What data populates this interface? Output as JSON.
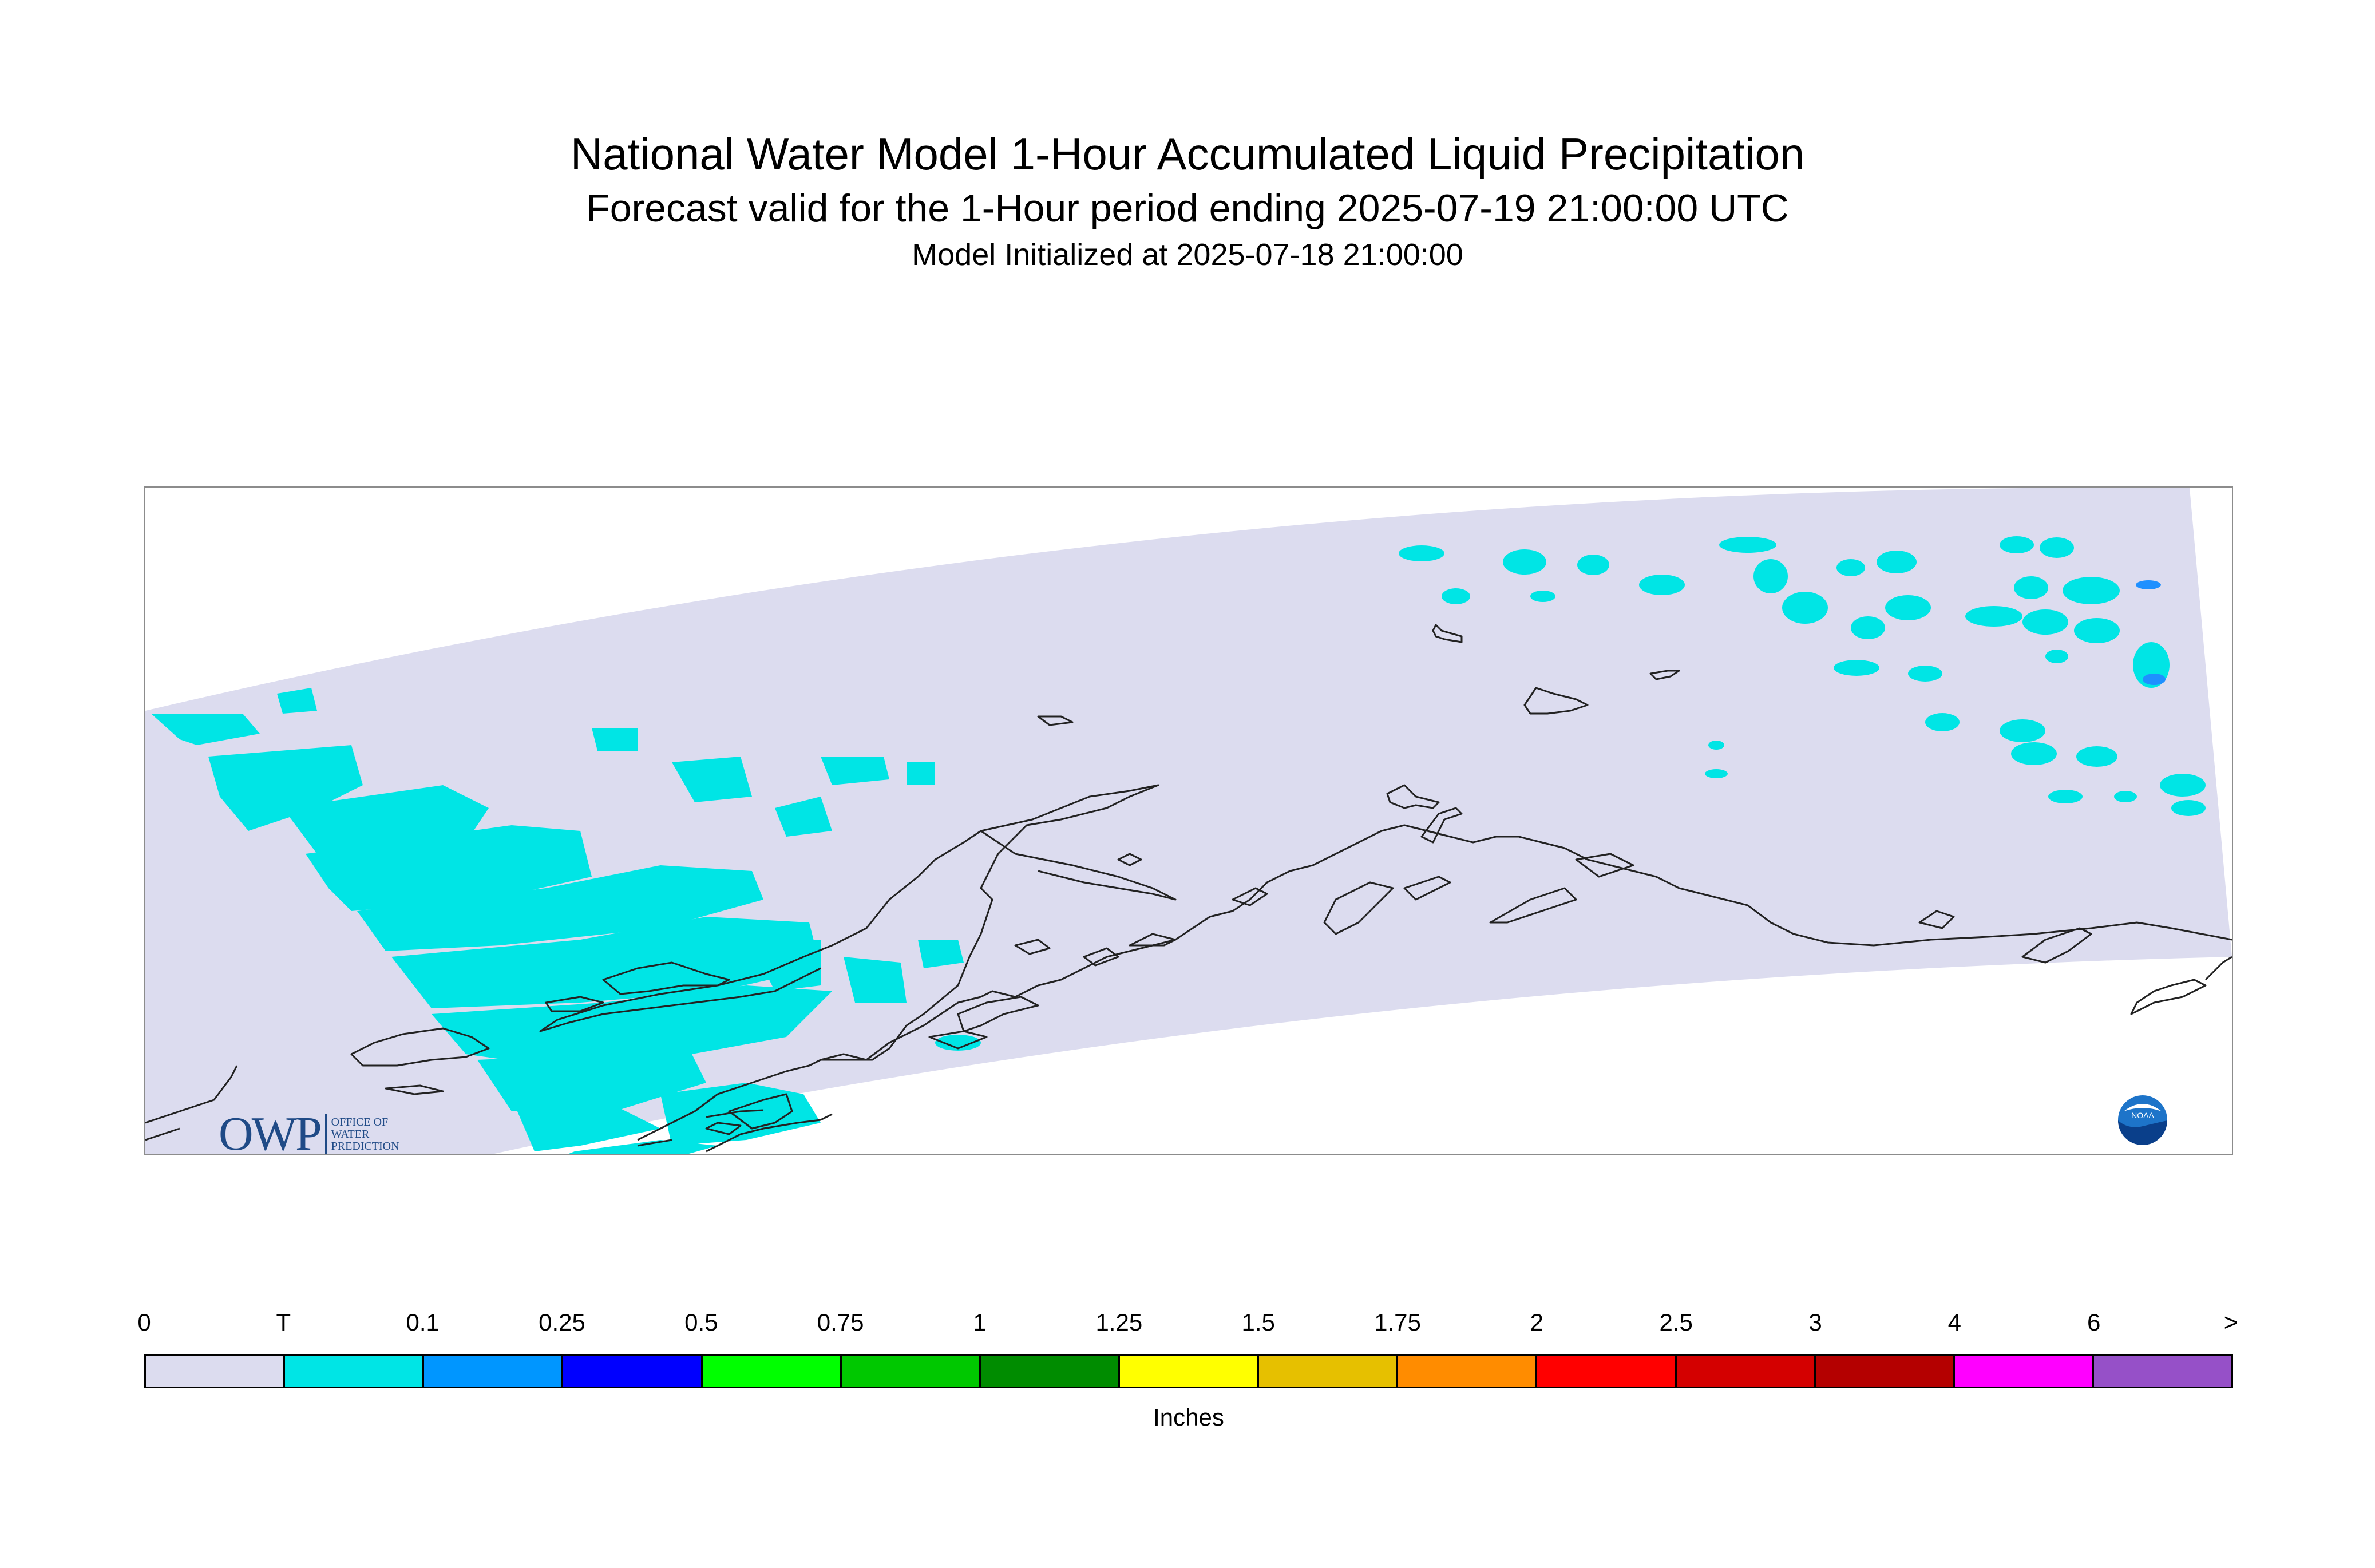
{
  "title": "National Water Model 1-Hour Accumulated Liquid Precipitation",
  "subtitle": "Forecast valid for the 1-Hour period ending 2025-07-19 21:00:00 UTC",
  "init_line": "Model Initialized at 2025-07-18 21:00:00",
  "map": {
    "region": "Alaska",
    "domain_fill_color": "#dcdcef",
    "coastline_color": "#222222",
    "precip_trace_color": "#00e5e5",
    "precip_light_color": "#1e90ff"
  },
  "logos": {
    "owp": {
      "letters": "OWP",
      "line1": "OFFICE OF",
      "line2": "WATER",
      "line3": "PREDICTION"
    },
    "noaa": {
      "text": "NOAA"
    }
  },
  "legend": {
    "units": "Inches",
    "labels": [
      "0",
      "T",
      "0.1",
      "0.25",
      "0.5",
      "0.75",
      "1",
      "1.25",
      "1.5",
      "1.75",
      "2",
      "2.5",
      "3",
      "4",
      "6",
      ">"
    ],
    "colors": [
      "#dcdcef",
      "#00e5e5",
      "#0096ff",
      "#0000ff",
      "#00ff00",
      "#00c800",
      "#008c00",
      "#ffff00",
      "#e6c000",
      "#ff8c00",
      "#ff0000",
      "#d40000",
      "#b40000",
      "#ff00ff",
      "#9650c8"
    ]
  }
}
